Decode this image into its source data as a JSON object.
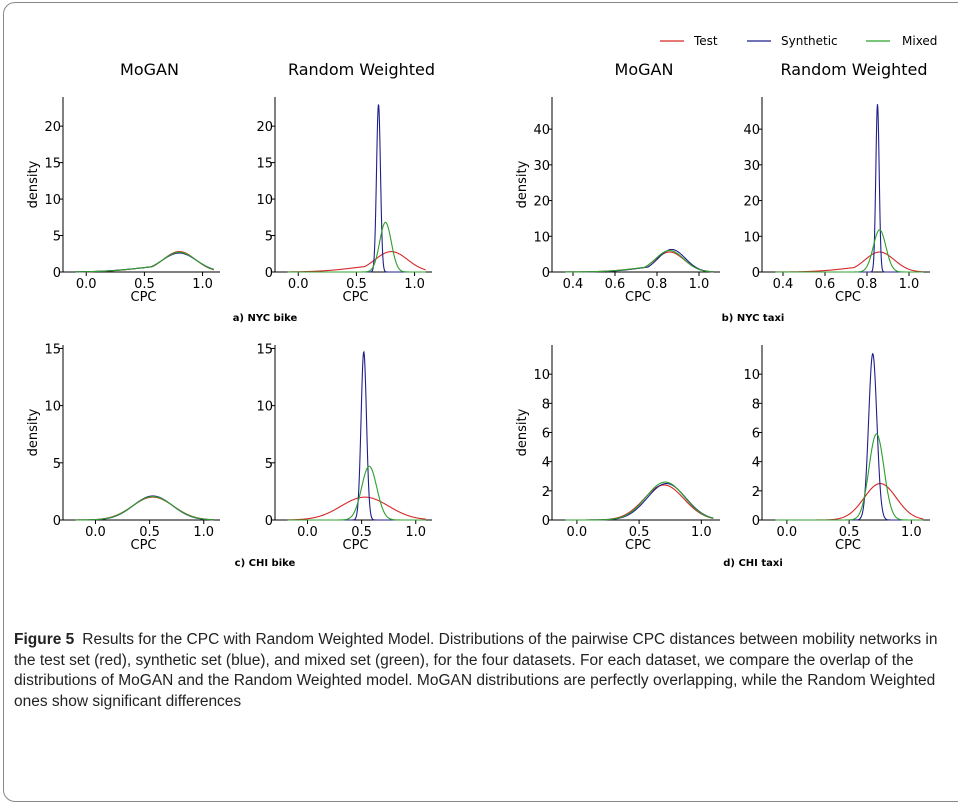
{
  "legend": [
    {
      "name": "Test",
      "color": "#d62728"
    },
    {
      "name": "Synthetic",
      "color": "#1f1f8c"
    },
    {
      "name": "Mixed",
      "color": "#2ca02c"
    }
  ],
  "chart_data": [
    {
      "type": "line",
      "title": "MoGAN",
      "xlabel": "CPC",
      "ylabel": "density",
      "xlim": [
        -0.2,
        1.15
      ],
      "ylim": [
        0,
        24
      ],
      "xticks": [
        "0.0",
        "0.5",
        "1.0"
      ],
      "yticks": [
        "0",
        "5",
        "10",
        "15",
        "20"
      ],
      "series": [
        {
          "name": "Test",
          "peak_x": 0.8,
          "peak_y": 2.8,
          "sigma": 0.14,
          "left_tail": 0.35
        },
        {
          "name": "Synthetic",
          "peak_x": 0.8,
          "peak_y": 2.6,
          "sigma": 0.15,
          "left_tail": 0.35
        },
        {
          "name": "Mixed",
          "peak_x": 0.8,
          "peak_y": 2.7,
          "sigma": 0.145,
          "left_tail": 0.35
        }
      ]
    },
    {
      "type": "line",
      "title": "Random Weighted",
      "xlabel": "CPC",
      "ylabel": "",
      "xlim": [
        -0.2,
        1.15
      ],
      "ylim": [
        0,
        24
      ],
      "xticks": [
        "0.0",
        "0.5",
        "1.0"
      ],
      "yticks": [
        "0",
        "5",
        "10",
        "15",
        "20"
      ],
      "series": [
        {
          "name": "Test",
          "peak_x": 0.8,
          "peak_y": 2.8,
          "sigma": 0.14,
          "left_tail": 0.35
        },
        {
          "name": "Synthetic",
          "peak_x": 0.69,
          "peak_y": 23.0,
          "sigma": 0.017,
          "left_tail": 0
        },
        {
          "name": "Mixed",
          "peak_x": 0.75,
          "peak_y": 6.8,
          "sigma": 0.05,
          "left_tail": 0
        }
      ]
    },
    {
      "type": "line",
      "title": "MoGAN",
      "xlabel": "CPC",
      "ylabel": "density",
      "xlim": [
        0.3,
        1.1
      ],
      "ylim": [
        0,
        49
      ],
      "xticks": [
        "0.4",
        "0.6",
        "0.8",
        "1.0"
      ],
      "yticks": [
        "0",
        "10",
        "20",
        "30",
        "40"
      ],
      "series": [
        {
          "name": "Test",
          "peak_x": 0.86,
          "peak_y": 5.6,
          "sigma": 0.07,
          "left_tail": 0.3
        },
        {
          "name": "Synthetic",
          "peak_x": 0.87,
          "peak_y": 6.3,
          "sigma": 0.065,
          "left_tail": 0.3
        },
        {
          "name": "Mixed",
          "peak_x": 0.86,
          "peak_y": 6.0,
          "sigma": 0.068,
          "left_tail": 0.3
        }
      ]
    },
    {
      "type": "line",
      "title": "Random Weighted",
      "xlabel": "CPC",
      "ylabel": "",
      "xlim": [
        0.3,
        1.1
      ],
      "ylim": [
        0,
        49
      ],
      "xticks": [
        "0.4",
        "0.6",
        "0.8",
        "1.0"
      ],
      "yticks": [
        "0",
        "10",
        "20",
        "30",
        "40"
      ],
      "series": [
        {
          "name": "Test",
          "peak_x": 0.86,
          "peak_y": 5.6,
          "sigma": 0.07,
          "left_tail": 0.3
        },
        {
          "name": "Synthetic",
          "peak_x": 0.85,
          "peak_y": 47.0,
          "sigma": 0.008,
          "left_tail": 0
        },
        {
          "name": "Mixed",
          "peak_x": 0.86,
          "peak_y": 11.8,
          "sigma": 0.03,
          "left_tail": 0
        }
      ]
    },
    {
      "type": "line",
      "title": "",
      "xlabel": "CPC",
      "ylabel": "density",
      "xlim": [
        -0.3,
        1.15
      ],
      "ylim": [
        0,
        15.3
      ],
      "xticks": [
        "0.0",
        "0.5",
        "1.0"
      ],
      "yticks": [
        "0",
        "5",
        "10",
        "15"
      ],
      "series": [
        {
          "name": "Test",
          "peak_x": 0.53,
          "peak_y": 2.0,
          "sigma": 0.19,
          "left_tail": 0
        },
        {
          "name": "Synthetic",
          "peak_x": 0.53,
          "peak_y": 2.1,
          "sigma": 0.18,
          "left_tail": 0
        },
        {
          "name": "Mixed",
          "peak_x": 0.53,
          "peak_y": 2.05,
          "sigma": 0.185,
          "left_tail": 0
        }
      ]
    },
    {
      "type": "line",
      "title": "",
      "xlabel": "CPC",
      "ylabel": "",
      "xlim": [
        -0.3,
        1.15
      ],
      "ylim": [
        0,
        15.3
      ],
      "xticks": [
        "0.0",
        "0.5",
        "1.0"
      ],
      "yticks": [
        "0",
        "5",
        "10",
        "15"
      ],
      "series": [
        {
          "name": "Test",
          "peak_x": 0.53,
          "peak_y": 2.0,
          "sigma": 0.22,
          "left_tail": 0
        },
        {
          "name": "Synthetic",
          "peak_x": 0.52,
          "peak_y": 14.7,
          "sigma": 0.025,
          "left_tail": 0
        },
        {
          "name": "Mixed",
          "peak_x": 0.57,
          "peak_y": 4.7,
          "sigma": 0.07,
          "left_tail": 0
        }
      ]
    },
    {
      "type": "line",
      "title": "",
      "xlabel": "CPC",
      "ylabel": "density",
      "xlim": [
        -0.2,
        1.15
      ],
      "ylim": [
        0,
        12
      ],
      "xticks": [
        "0.0",
        "0.5",
        "1.0"
      ],
      "yticks": [
        "0",
        "2",
        "4",
        "6",
        "8",
        "10"
      ],
      "series": [
        {
          "name": "Test",
          "peak_x": 0.7,
          "peak_y": 2.4,
          "sigma": 0.16,
          "left_tail": 0
        },
        {
          "name": "Synthetic",
          "peak_x": 0.72,
          "peak_y": 2.5,
          "sigma": 0.155,
          "left_tail": 0
        },
        {
          "name": "Mixed",
          "peak_x": 0.71,
          "peak_y": 2.6,
          "sigma": 0.155,
          "left_tail": 0
        }
      ]
    },
    {
      "type": "line",
      "title": "",
      "xlabel": "CPC",
      "ylabel": "",
      "xlim": [
        -0.2,
        1.15
      ],
      "ylim": [
        0,
        12
      ],
      "xticks": [
        "0.0",
        "0.5",
        "1.0"
      ],
      "yticks": [
        "0",
        "2",
        "4",
        "6",
        "8",
        "10"
      ],
      "series": [
        {
          "name": "Test",
          "peak_x": 0.75,
          "peak_y": 2.5,
          "sigma": 0.13,
          "left_tail": 0
        },
        {
          "name": "Synthetic",
          "peak_x": 0.69,
          "peak_y": 11.4,
          "sigma": 0.033,
          "left_tail": 0
        },
        {
          "name": "Mixed",
          "peak_x": 0.72,
          "peak_y": 5.9,
          "sigma": 0.06,
          "left_tail": 0
        }
      ]
    }
  ],
  "subfigures": [
    {
      "label": "a) NYC bike"
    },
    {
      "label": "b) NYC taxi"
    },
    {
      "label": "c) CHI bike"
    },
    {
      "label": "d) CHI taxi"
    }
  ],
  "caption": {
    "label": "Figure 5",
    "text": "Results for the CPC with Random Weighted Model. Distributions of the pairwise CPC distances between mobility networks in the test set (red), synthetic set (blue), and mixed set (green), for the four datasets. For each dataset, we compare the overlap of the distributions of MoGAN and the Random Weighted model. MoGAN distributions are perfectly overlapping, while the Random Weighted ones show significant differences"
  }
}
